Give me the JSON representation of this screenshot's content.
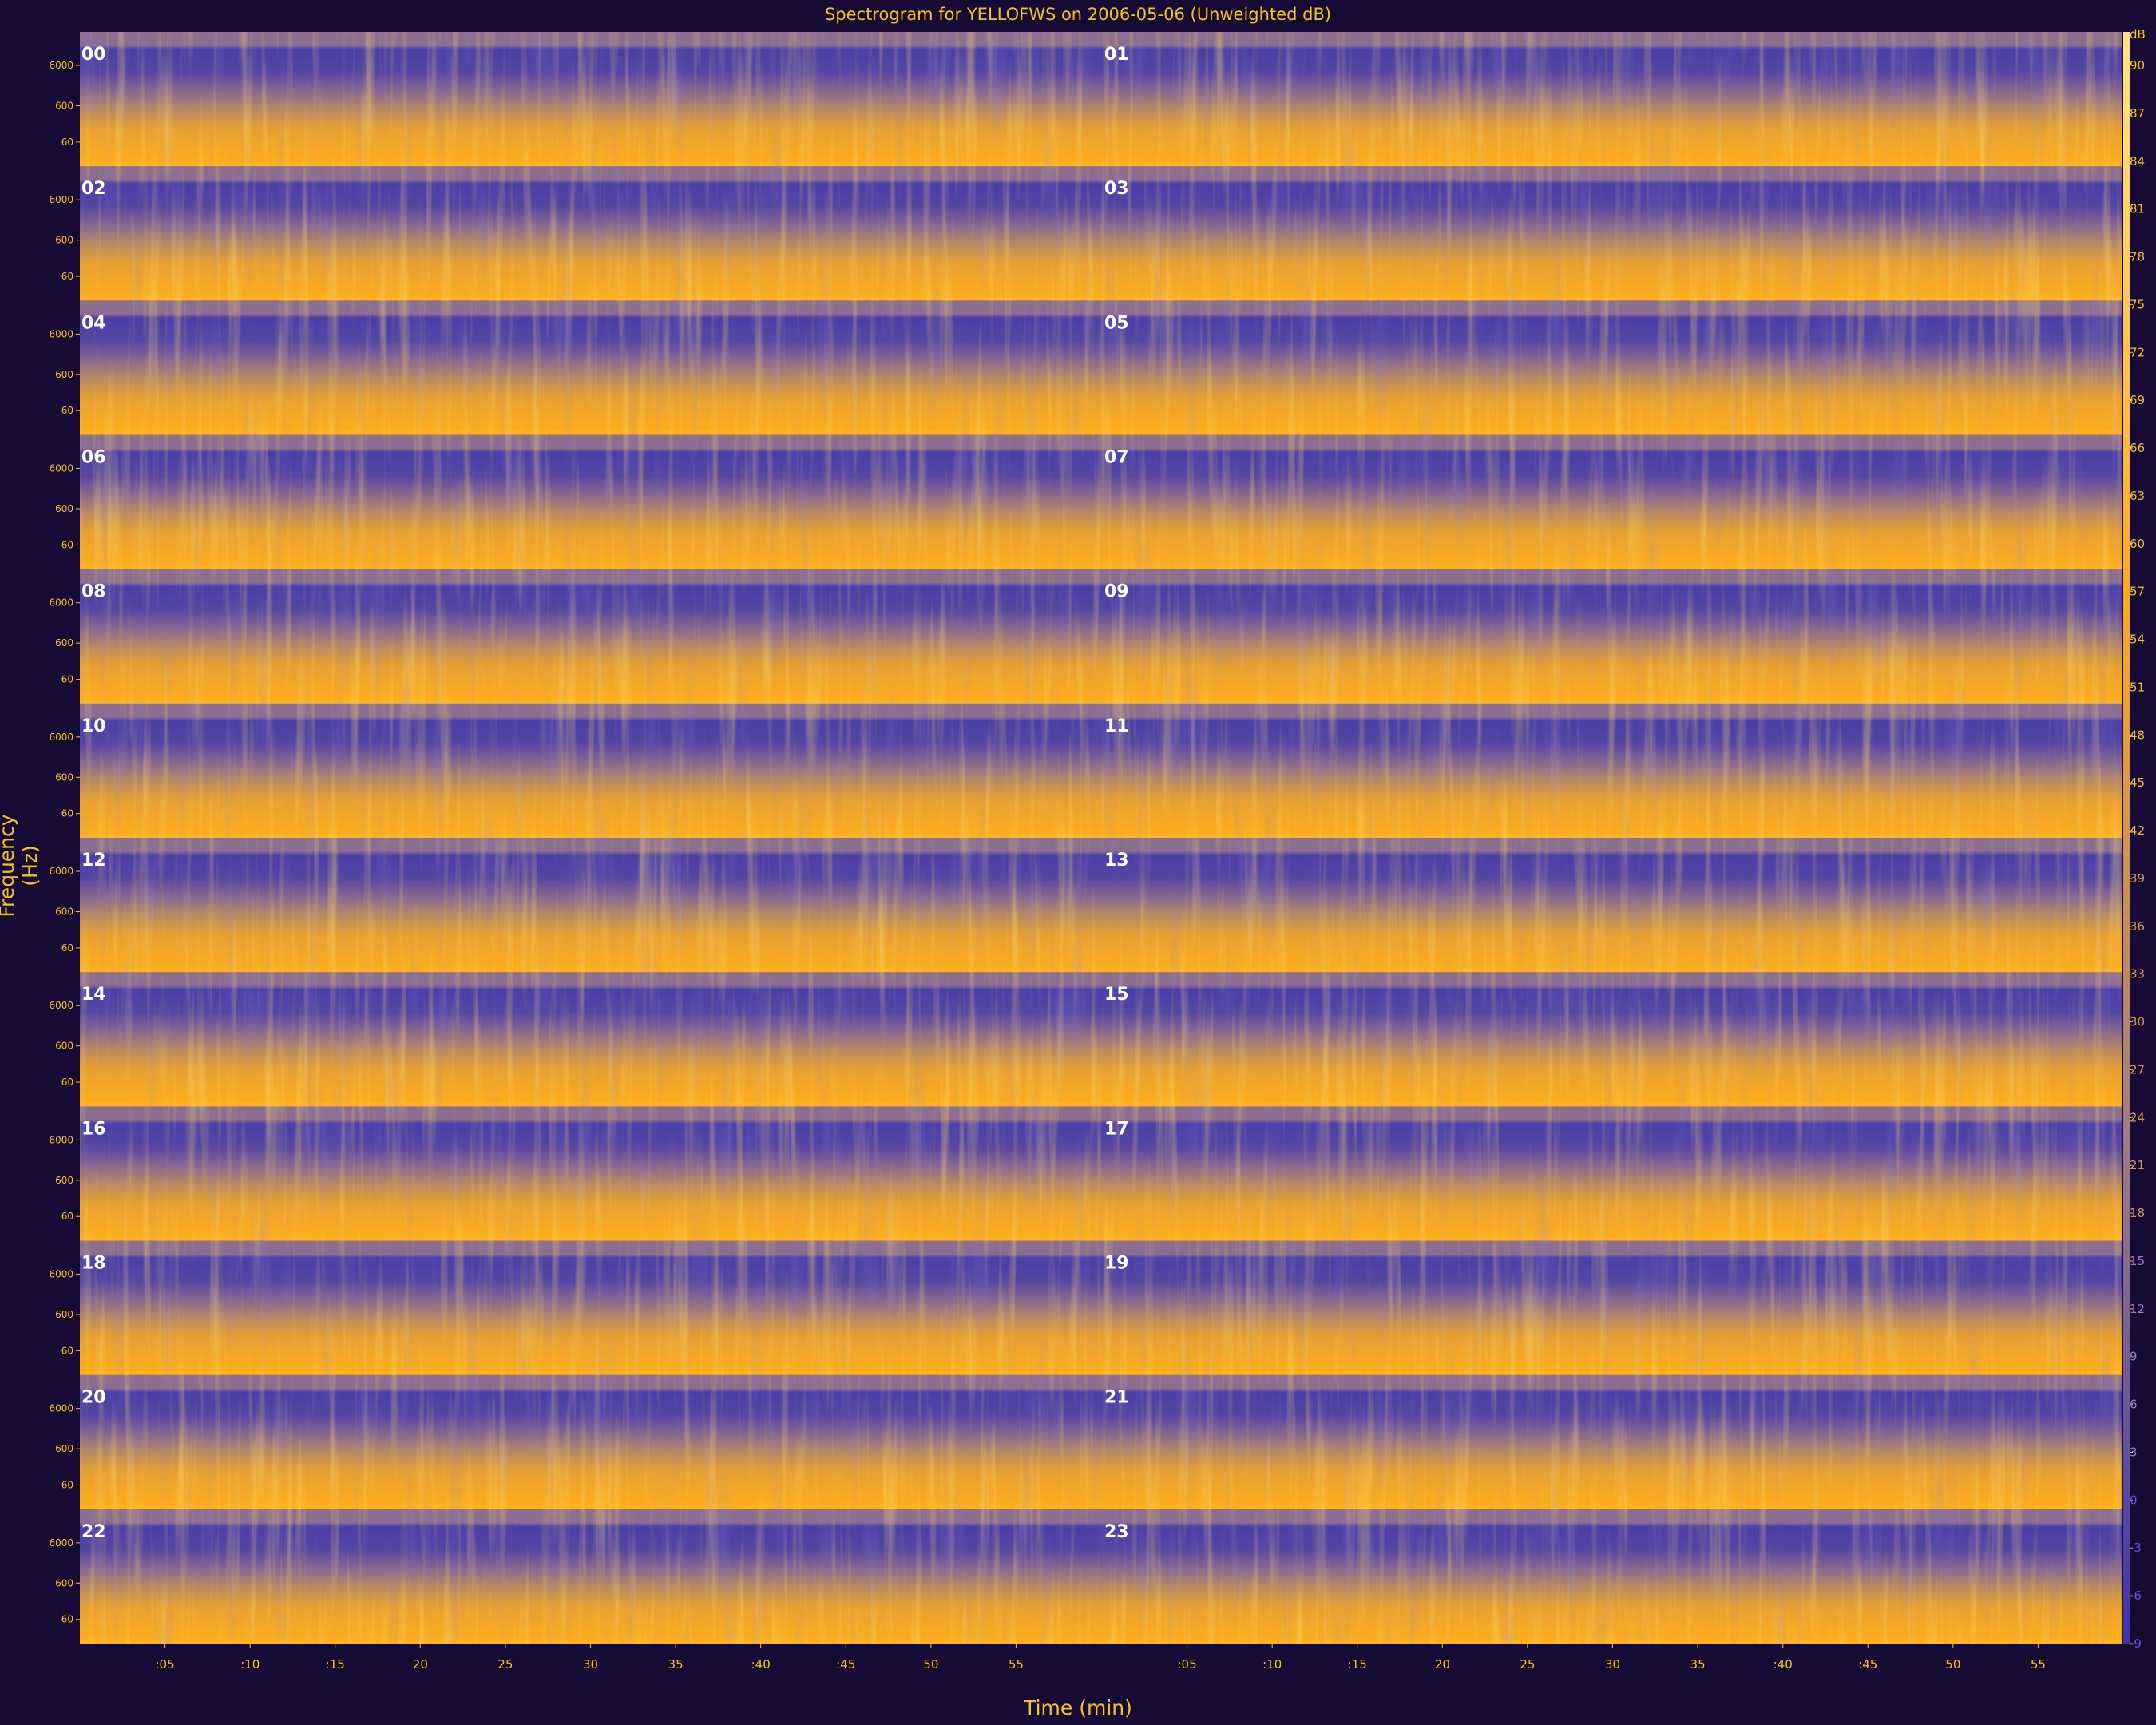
{
  "chart_data": {
    "type": "heatmap",
    "title": "Spectrogram for YELLOFWS on 2006-05-06 (Unweighted dB)",
    "xlabel": "Time (min)",
    "ylabel": "Frequency (Hz)",
    "panel_labels": [
      "00",
      "01",
      "02",
      "03",
      "04",
      "05",
      "06",
      "07",
      "08",
      "09",
      "10",
      "11",
      "12",
      "13",
      "14",
      "15",
      "16",
      "17",
      "18",
      "19",
      "20",
      "21",
      "22",
      "23"
    ],
    "frequency_ticks": [
      "6000",
      "600",
      "60"
    ],
    "time_ticks": [
      ":05",
      ":10",
      ":15",
      "20",
      "25",
      "30",
      "35",
      ":40",
      ":45",
      "50",
      "55"
    ],
    "colorbar": {
      "unit": "dB",
      "ticks": [
        90,
        87,
        84,
        81,
        78,
        75,
        72,
        69,
        66,
        63,
        60,
        57,
        54,
        51,
        48,
        45,
        42,
        39,
        36,
        33,
        30,
        27,
        24,
        21,
        18,
        15,
        12,
        9,
        6,
        3,
        0,
        -3,
        -6,
        -9
      ]
    },
    "colors": {
      "background": "#170b36",
      "low": "#4a3fa8",
      "mid": "#9b7a86",
      "high": "#ffa91a",
      "peak": "#fff3b8"
    }
  }
}
